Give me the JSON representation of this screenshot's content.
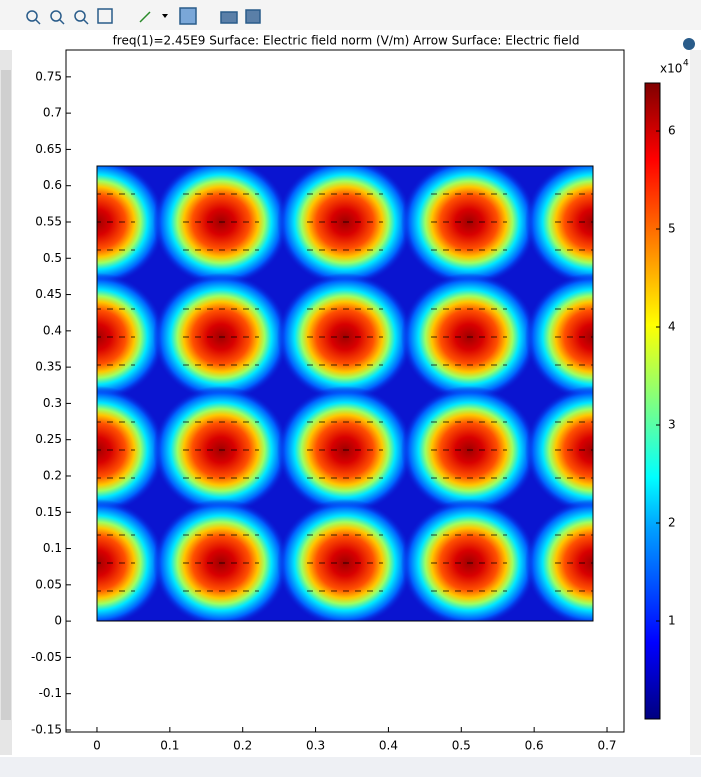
{
  "chart_data": {
    "type": "heatmap",
    "title": "freq(1)=2.45E9   Surface: Electric field norm (V/m)  Arrow Surface: Electric field",
    "xlim": [
      -0.0425,
      0.7233
    ],
    "xticks": [
      0,
      0.1,
      0.2,
      0.3,
      0.4,
      0.5,
      0.6,
      0.7
    ],
    "ylim": [
      -0.1528,
      0.787
    ],
    "yticks": [
      {
        "value": -0.15,
        "label": "-0.15"
      },
      {
        "value": -0.1,
        "label": "-0.1"
      },
      {
        "value": -0.05,
        "label": "-0.05"
      },
      0,
      0.05,
      0.1,
      0.15,
      0.2,
      0.25,
      0.3,
      0.35,
      0.4,
      0.45,
      0.5,
      0.55,
      0.6,
      0.65,
      0.7,
      0.75
    ],
    "colorbar_multiplier": "x10",
    "colorbar_exponent": "4",
    "clim": [
      0,
      6.49
    ],
    "cticks": [
      1,
      2,
      3,
      4,
      5,
      6
    ]
  }
}
